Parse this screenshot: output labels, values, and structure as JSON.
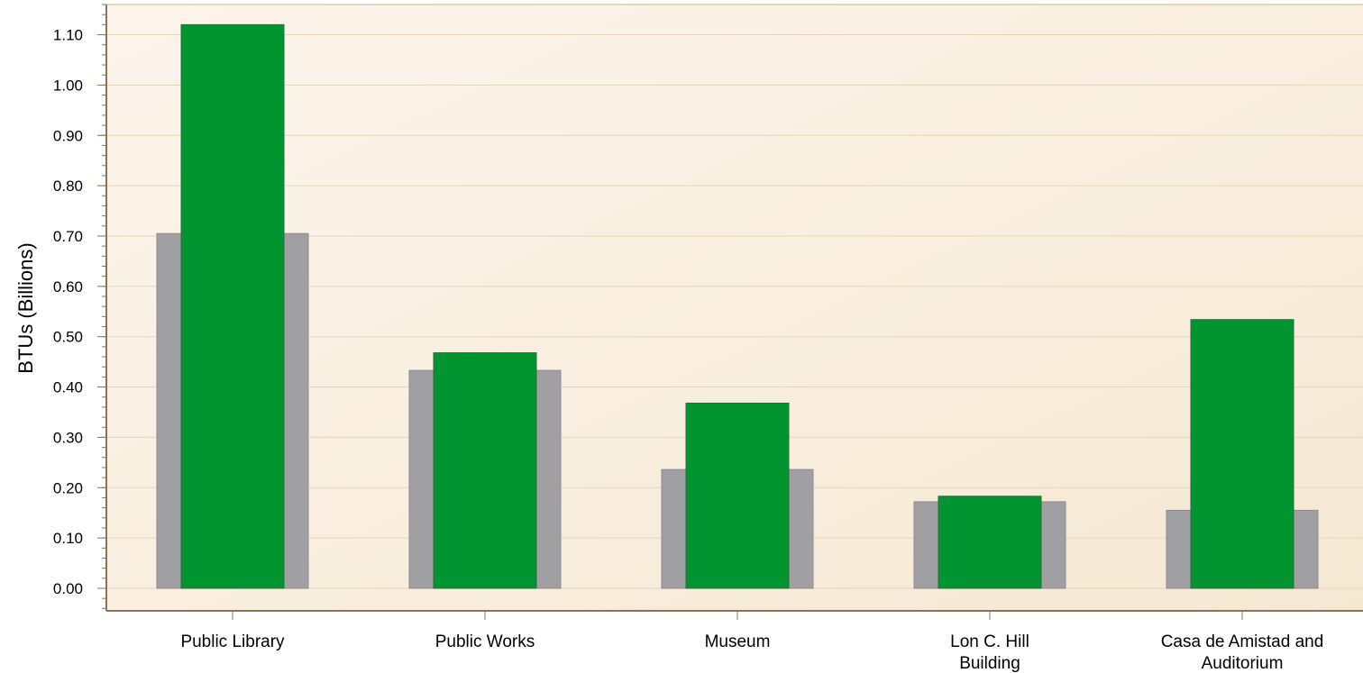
{
  "chart_data": {
    "type": "bar",
    "title": "",
    "xlabel": "",
    "ylabel": "BTUs (Billions)",
    "ylim": [
      0,
      1.1
    ],
    "yticks": [
      "0.00",
      "0.10",
      "0.20",
      "0.30",
      "0.40",
      "0.50",
      "0.60",
      "0.70",
      "0.80",
      "0.90",
      "1.00",
      "1.10"
    ],
    "categories": [
      [
        "Public Library"
      ],
      [
        "Public Works"
      ],
      [
        "Museum"
      ],
      [
        "Lon C. Hill",
        "Building"
      ],
      [
        "Casa de Amistad and",
        "Auditorium"
      ]
    ],
    "series": [
      {
        "values": [
          0.705,
          0.433,
          0.236,
          0.172,
          0.155
        ],
        "color": "#a0a0a4"
      },
      {
        "values": [
          1.12,
          0.468,
          0.368,
          0.183,
          0.534
        ],
        "color": "#009530"
      }
    ],
    "grid": true,
    "legend": "none",
    "colors": {
      "background_start": "#fdf5ec",
      "background_end": "#f5e8d3",
      "gridline": "#e3d7b8",
      "axis": "#8b7355"
    }
  }
}
